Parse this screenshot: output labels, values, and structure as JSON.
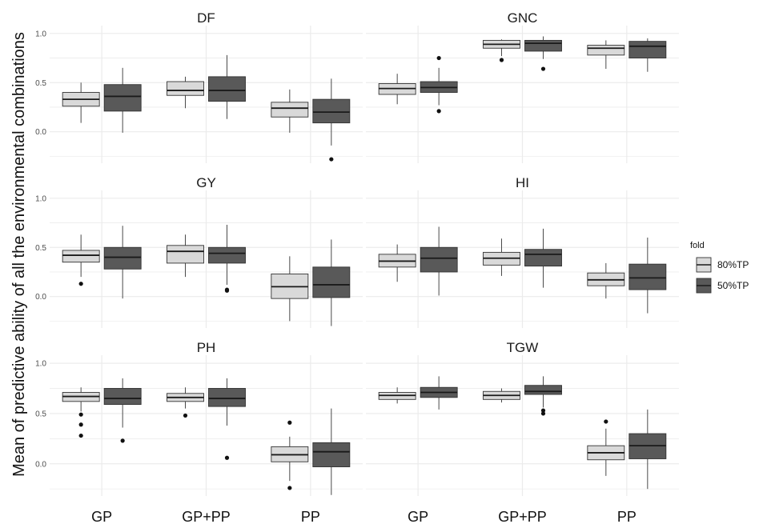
{
  "chart_data": {
    "type": "box",
    "ylabel": "Mean of predictive ability of all the environmental combinations",
    "categories": [
      "GP",
      "GP+PP",
      "PP"
    ],
    "yticks": [
      0.0,
      0.5,
      1.0
    ],
    "ytick_labels": [
      "0.0",
      "0.5",
      "1.0"
    ],
    "ylim": [
      -0.32,
      1.08
    ],
    "grid": true,
    "legend": {
      "title": "fold",
      "position": "right",
      "entries": [
        {
          "label": "80%TP",
          "color": "#d9d9d9"
        },
        {
          "label": "50%TP",
          "color": "#595959"
        }
      ]
    },
    "colors": {
      "80%TP": "#d9d9d9",
      "50%TP": "#595959",
      "grid": "#ebebeb"
    },
    "panels": [
      {
        "title": "DF",
        "boxes": [
          {
            "category": "GP",
            "fold": "80%TP",
            "lower_whisker": 0.09,
            "q1": 0.26,
            "median": 0.33,
            "q3": 0.4,
            "upper_whisker": 0.5,
            "outliers": []
          },
          {
            "category": "GP",
            "fold": "50%TP",
            "lower_whisker": -0.01,
            "q1": 0.21,
            "median": 0.36,
            "q3": 0.48,
            "upper_whisker": 0.65,
            "outliers": []
          },
          {
            "category": "GP+PP",
            "fold": "80%TP",
            "lower_whisker": 0.24,
            "q1": 0.37,
            "median": 0.42,
            "q3": 0.51,
            "upper_whisker": 0.56,
            "outliers": []
          },
          {
            "category": "GP+PP",
            "fold": "50%TP",
            "lower_whisker": 0.13,
            "q1": 0.31,
            "median": 0.42,
            "q3": 0.56,
            "upper_whisker": 0.78,
            "outliers": []
          },
          {
            "category": "PP",
            "fold": "80%TP",
            "lower_whisker": -0.01,
            "q1": 0.15,
            "median": 0.24,
            "q3": 0.3,
            "upper_whisker": 0.43,
            "outliers": []
          },
          {
            "category": "PP",
            "fold": "50%TP",
            "lower_whisker": -0.14,
            "q1": 0.09,
            "median": 0.2,
            "q3": 0.33,
            "upper_whisker": 0.54,
            "outliers": [
              -0.28
            ]
          }
        ]
      },
      {
        "title": "GNC",
        "boxes": [
          {
            "category": "GP",
            "fold": "80%TP",
            "lower_whisker": 0.28,
            "q1": 0.38,
            "median": 0.44,
            "q3": 0.49,
            "upper_whisker": 0.59,
            "outliers": []
          },
          {
            "category": "GP",
            "fold": "50%TP",
            "lower_whisker": 0.27,
            "q1": 0.4,
            "median": 0.45,
            "q3": 0.51,
            "upper_whisker": 0.65,
            "outliers": [
              0.75,
              0.21
            ]
          },
          {
            "category": "GP+PP",
            "fold": "80%TP",
            "lower_whisker": 0.77,
            "q1": 0.85,
            "median": 0.89,
            "q3": 0.93,
            "upper_whisker": 0.94,
            "outliers": [
              0.73
            ]
          },
          {
            "category": "GP+PP",
            "fold": "50%TP",
            "lower_whisker": 0.74,
            "q1": 0.82,
            "median": 0.9,
            "q3": 0.93,
            "upper_whisker": 0.97,
            "outliers": [
              0.64
            ]
          },
          {
            "category": "PP",
            "fold": "80%TP",
            "lower_whisker": 0.64,
            "q1": 0.78,
            "median": 0.85,
            "q3": 0.88,
            "upper_whisker": 0.93,
            "outliers": []
          },
          {
            "category": "PP",
            "fold": "50%TP",
            "lower_whisker": 0.61,
            "q1": 0.75,
            "median": 0.87,
            "q3": 0.92,
            "upper_whisker": 0.95,
            "outliers": []
          }
        ]
      },
      {
        "title": "GY",
        "boxes": [
          {
            "category": "GP",
            "fold": "80%TP",
            "lower_whisker": 0.2,
            "q1": 0.35,
            "median": 0.42,
            "q3": 0.47,
            "upper_whisker": 0.63,
            "outliers": [
              0.13
            ]
          },
          {
            "category": "GP",
            "fold": "50%TP",
            "lower_whisker": -0.02,
            "q1": 0.28,
            "median": 0.4,
            "q3": 0.5,
            "upper_whisker": 0.72,
            "outliers": []
          },
          {
            "category": "GP+PP",
            "fold": "80%TP",
            "lower_whisker": 0.2,
            "q1": 0.34,
            "median": 0.46,
            "q3": 0.52,
            "upper_whisker": 0.63,
            "outliers": []
          },
          {
            "category": "GP+PP",
            "fold": "50%TP",
            "lower_whisker": 0.12,
            "q1": 0.34,
            "median": 0.44,
            "q3": 0.5,
            "upper_whisker": 0.73,
            "outliers": [
              0.07,
              0.06
            ]
          },
          {
            "category": "PP",
            "fold": "80%TP",
            "lower_whisker": -0.25,
            "q1": -0.02,
            "median": 0.1,
            "q3": 0.23,
            "upper_whisker": 0.41,
            "outliers": []
          },
          {
            "category": "PP",
            "fold": "50%TP",
            "lower_whisker": -0.3,
            "q1": -0.01,
            "median": 0.12,
            "q3": 0.3,
            "upper_whisker": 0.58,
            "outliers": []
          }
        ]
      },
      {
        "title": "HI",
        "boxes": [
          {
            "category": "GP",
            "fold": "80%TP",
            "lower_whisker": 0.15,
            "q1": 0.3,
            "median": 0.36,
            "q3": 0.43,
            "upper_whisker": 0.53,
            "outliers": []
          },
          {
            "category": "GP",
            "fold": "50%TP",
            "lower_whisker": 0.01,
            "q1": 0.25,
            "median": 0.39,
            "q3": 0.5,
            "upper_whisker": 0.71,
            "outliers": []
          },
          {
            "category": "GP+PP",
            "fold": "80%TP",
            "lower_whisker": 0.21,
            "q1": 0.32,
            "median": 0.39,
            "q3": 0.45,
            "upper_whisker": 0.59,
            "outliers": []
          },
          {
            "category": "GP+PP",
            "fold": "50%TP",
            "lower_whisker": 0.09,
            "q1": 0.31,
            "median": 0.43,
            "q3": 0.48,
            "upper_whisker": 0.69,
            "outliers": []
          },
          {
            "category": "PP",
            "fold": "80%TP",
            "lower_whisker": -0.02,
            "q1": 0.11,
            "median": 0.17,
            "q3": 0.24,
            "upper_whisker": 0.34,
            "outliers": []
          },
          {
            "category": "PP",
            "fold": "50%TP",
            "lower_whisker": -0.17,
            "q1": 0.07,
            "median": 0.19,
            "q3": 0.33,
            "upper_whisker": 0.6,
            "outliers": []
          }
        ]
      },
      {
        "title": "PH",
        "boxes": [
          {
            "category": "GP",
            "fold": "80%TP",
            "lower_whisker": 0.52,
            "q1": 0.62,
            "median": 0.67,
            "q3": 0.71,
            "upper_whisker": 0.76,
            "outliers": [
              0.49,
              0.39,
              0.28
            ]
          },
          {
            "category": "GP",
            "fold": "50%TP",
            "lower_whisker": 0.36,
            "q1": 0.59,
            "median": 0.65,
            "q3": 0.75,
            "upper_whisker": 0.85,
            "outliers": [
              0.23
            ]
          },
          {
            "category": "GP+PP",
            "fold": "80%TP",
            "lower_whisker": 0.55,
            "q1": 0.62,
            "median": 0.66,
            "q3": 0.7,
            "upper_whisker": 0.76,
            "outliers": [
              0.48
            ]
          },
          {
            "category": "GP+PP",
            "fold": "50%TP",
            "lower_whisker": 0.38,
            "q1": 0.57,
            "median": 0.65,
            "q3": 0.75,
            "upper_whisker": 0.85,
            "outliers": [
              0.06
            ]
          },
          {
            "category": "PP",
            "fold": "80%TP",
            "lower_whisker": -0.17,
            "q1": 0.02,
            "median": 0.09,
            "q3": 0.17,
            "upper_whisker": 0.27,
            "outliers": [
              0.41,
              -0.24
            ]
          },
          {
            "category": "PP",
            "fold": "50%TP",
            "lower_whisker": -0.31,
            "q1": -0.03,
            "median": 0.12,
            "q3": 0.21,
            "upper_whisker": 0.55,
            "outliers": []
          }
        ]
      },
      {
        "title": "TGW",
        "boxes": [
          {
            "category": "GP",
            "fold": "80%TP",
            "lower_whisker": 0.6,
            "q1": 0.64,
            "median": 0.68,
            "q3": 0.71,
            "upper_whisker": 0.76,
            "outliers": []
          },
          {
            "category": "GP",
            "fold": "50%TP",
            "lower_whisker": 0.54,
            "q1": 0.66,
            "median": 0.71,
            "q3": 0.76,
            "upper_whisker": 0.87,
            "outliers": []
          },
          {
            "category": "GP+PP",
            "fold": "80%TP",
            "lower_whisker": 0.61,
            "q1": 0.64,
            "median": 0.68,
            "q3": 0.72,
            "upper_whisker": 0.75,
            "outliers": []
          },
          {
            "category": "GP+PP",
            "fold": "50%TP",
            "lower_whisker": 0.56,
            "q1": 0.69,
            "median": 0.72,
            "q3": 0.78,
            "upper_whisker": 0.87,
            "outliers": [
              0.53,
              0.5
            ]
          },
          {
            "category": "PP",
            "fold": "80%TP",
            "lower_whisker": -0.12,
            "q1": 0.04,
            "median": 0.11,
            "q3": 0.18,
            "upper_whisker": 0.35,
            "outliers": [
              0.42
            ]
          },
          {
            "category": "PP",
            "fold": "50%TP",
            "lower_whisker": -0.25,
            "q1": 0.05,
            "median": 0.18,
            "q3": 0.3,
            "upper_whisker": 0.54,
            "outliers": []
          }
        ]
      }
    ]
  }
}
